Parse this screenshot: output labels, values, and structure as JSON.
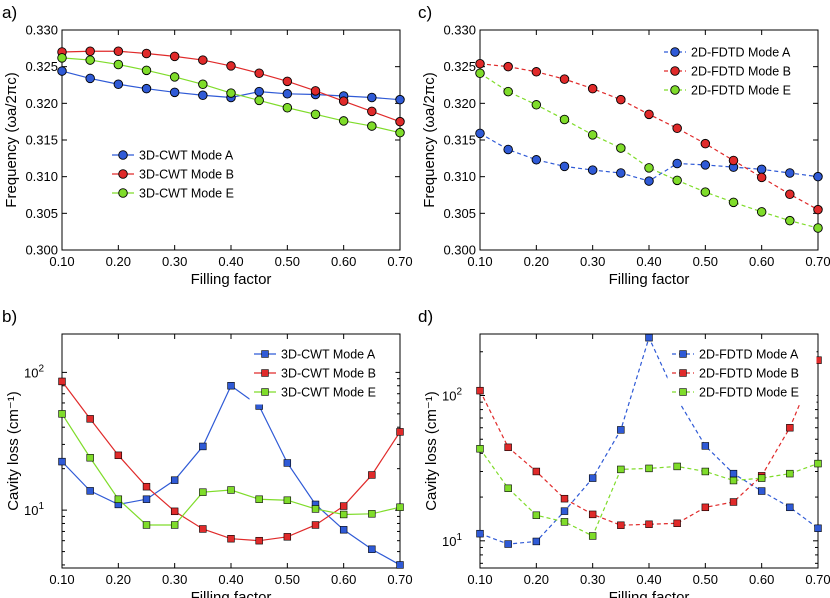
{
  "colors": {
    "blue": "#2f5ad6",
    "red": "#e02a2a",
    "green": "#7fdc2a"
  },
  "chart_data": [
    {
      "panel_label": "a)",
      "type": "line",
      "marker": "circle",
      "line_style": "solid",
      "xlabel": "Filling factor",
      "ylabel": "Frequency (ωa/2πc)",
      "xlim": [
        0.1,
        0.7
      ],
      "ylim": [
        0.3,
        0.33
      ],
      "yscale": "linear",
      "xticks": [
        "0.10",
        "0.20",
        "0.30",
        "0.40",
        "0.50",
        "0.60",
        "0.70"
      ],
      "yticks": [
        "0.300",
        "0.305",
        "0.310",
        "0.315",
        "0.320",
        "0.325",
        "0.330"
      ],
      "legend_position": "center-left",
      "x": [
        0.1,
        0.15,
        0.2,
        0.25,
        0.3,
        0.35,
        0.4,
        0.45,
        0.5,
        0.55,
        0.6,
        0.65,
        0.7
      ],
      "series": [
        {
          "name": "3D-CWT Mode A",
          "color": "blue",
          "values": [
            0.3244,
            0.3234,
            0.3226,
            0.322,
            0.3215,
            0.3211,
            0.3208,
            0.3216,
            0.3213,
            0.3212,
            0.321,
            0.3208,
            0.3205
          ]
        },
        {
          "name": "3D-CWT Mode B",
          "color": "red",
          "values": [
            0.327,
            0.3271,
            0.3271,
            0.3268,
            0.3264,
            0.3259,
            0.3251,
            0.3241,
            0.323,
            0.3217,
            0.3203,
            0.3189,
            0.3175
          ]
        },
        {
          "name": "3D-CWT Mode E",
          "color": "green",
          "values": [
            0.3262,
            0.3259,
            0.3253,
            0.3245,
            0.3236,
            0.3226,
            0.3214,
            0.3204,
            0.3194,
            0.3185,
            0.3176,
            0.3169,
            0.316
          ]
        }
      ]
    },
    {
      "panel_label": "c)",
      "type": "line",
      "marker": "circle",
      "line_style": "dashed",
      "xlabel": "Filling factor",
      "ylabel": "Frequency (ωa/2πc)",
      "xlim": [
        0.1,
        0.7
      ],
      "ylim": [
        0.3,
        0.33
      ],
      "yscale": "linear",
      "xticks": [
        "0.10",
        "0.20",
        "0.30",
        "0.40",
        "0.50",
        "0.60",
        "0.70"
      ],
      "yticks": [
        "0.300",
        "0.305",
        "0.310",
        "0.315",
        "0.320",
        "0.325",
        "0.330"
      ],
      "legend_position": "top-right",
      "x": [
        0.1,
        0.15,
        0.2,
        0.25,
        0.3,
        0.35,
        0.4,
        0.45,
        0.5,
        0.55,
        0.6,
        0.65,
        0.7
      ],
      "series": [
        {
          "name": "2D-FDTD Mode A",
          "color": "blue",
          "values": [
            0.3159,
            0.3137,
            0.3123,
            0.3114,
            0.3109,
            0.3105,
            0.3094,
            0.3118,
            0.3116,
            0.3113,
            0.311,
            0.3105,
            0.31
          ]
        },
        {
          "name": "2D-FDTD Mode B",
          "color": "red",
          "values": [
            0.3254,
            0.325,
            0.3243,
            0.3233,
            0.322,
            0.3205,
            0.3185,
            0.3166,
            0.3145,
            0.3122,
            0.3099,
            0.3076,
            0.3055
          ]
        },
        {
          "name": "2D-FDTD Mode E",
          "color": "green",
          "values": [
            0.3241,
            0.3216,
            0.3198,
            0.3178,
            0.3157,
            0.3139,
            0.3112,
            0.3095,
            0.3079,
            0.3065,
            0.3052,
            0.304,
            0.303
          ]
        }
      ]
    },
    {
      "panel_label": "b)",
      "type": "line",
      "marker": "square",
      "line_style": "solid",
      "xlabel": "Filling factor",
      "ylabel": "Cavity loss (cm⁻¹)",
      "xlim": [
        0.1,
        0.7
      ],
      "ylim": [
        3.8,
        190
      ],
      "yscale": "log",
      "xticks": [
        "0.10",
        "0.20",
        "0.30",
        "0.40",
        "0.50",
        "0.60",
        "0.70"
      ],
      "yticks_log": [
        {
          "value": 10,
          "mantissa": "10",
          "exponent": "1"
        },
        {
          "value": 100,
          "mantissa": "10",
          "exponent": "2"
        }
      ],
      "legend_position": "top-right",
      "x": [
        0.1,
        0.15,
        0.2,
        0.25,
        0.3,
        0.35,
        0.4,
        0.45,
        0.5,
        0.55,
        0.6,
        0.65,
        0.7
      ],
      "series": [
        {
          "name": "3D-CWT Mode A",
          "color": "blue",
          "values": [
            22.5,
            13.8,
            11.0,
            12.0,
            16.5,
            29,
            80,
            57,
            22,
            11,
            7.2,
            5.2,
            4.0
          ]
        },
        {
          "name": "3D-CWT Mode B",
          "color": "red",
          "values": [
            86,
            46,
            25,
            14.8,
            9.8,
            7.3,
            6.2,
            6.0,
            6.4,
            7.8,
            10.7,
            18,
            37
          ]
        },
        {
          "name": "3D-CWT Mode E",
          "color": "green",
          "values": [
            50,
            24,
            12.0,
            7.8,
            7.8,
            13.5,
            14,
            12,
            11.8,
            10.2,
            9.3,
            9.4,
            10.5
          ]
        }
      ]
    },
    {
      "panel_label": "d)",
      "type": "line",
      "marker": "square",
      "line_style": "dashed",
      "xlabel": "Filling factor",
      "ylabel": "Cavity loss (cm⁻¹)",
      "xlim": [
        0.1,
        0.7
      ],
      "ylim": [
        6.5,
        265
      ],
      "yscale": "log",
      "xticks": [
        "0.10",
        "0.20",
        "0.30",
        "0.40",
        "0.50",
        "0.60",
        "0.70"
      ],
      "yticks_log": [
        {
          "value": 10,
          "mantissa": "10",
          "exponent": "1"
        },
        {
          "value": 100,
          "mantissa": "10",
          "exponent": "2"
        }
      ],
      "legend_position": "top-center",
      "x": [
        0.1,
        0.15,
        0.2,
        0.25,
        0.3,
        0.35,
        0.4,
        0.45,
        0.5,
        0.55,
        0.6,
        0.65,
        0.7
      ],
      "series": [
        {
          "name": "2D-FDTD Mode A",
          "color": "blue",
          "values": [
            11.2,
            9.5,
            9.9,
            16,
            27,
            58,
            250,
            95,
            45,
            29,
            22,
            17,
            12.2
          ]
        },
        {
          "name": "2D-FDTD Mode B",
          "color": "red",
          "values": [
            108,
            44,
            30,
            19.5,
            15.2,
            12.8,
            13,
            13.2,
            17,
            18.5,
            28,
            60,
            175
          ]
        },
        {
          "name": "2D-FDTD Mode E",
          "color": "green",
          "values": [
            43,
            23,
            15,
            13.5,
            10.8,
            31,
            31.5,
            32.5,
            30,
            26,
            27,
            29,
            34
          ]
        }
      ]
    }
  ]
}
